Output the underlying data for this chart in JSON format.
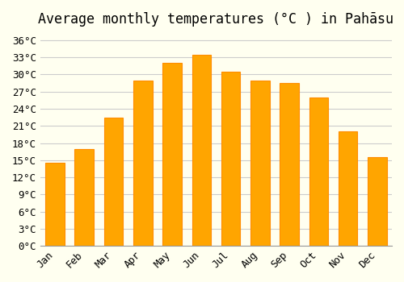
{
  "title": "Average monthly temperatures (°C ) in Pahāsu",
  "months": [
    "Jan",
    "Feb",
    "Mar",
    "Apr",
    "May",
    "Jun",
    "Jul",
    "Aug",
    "Sep",
    "Oct",
    "Nov",
    "Dec"
  ],
  "temperatures": [
    14.5,
    17.0,
    22.5,
    29.0,
    32.0,
    33.5,
    30.5,
    29.0,
    28.5,
    26.0,
    20.0,
    15.5
  ],
  "bar_color": "#FFA500",
  "bar_edge_color": "#FF8C00",
  "background_color": "#FFFFF0",
  "grid_color": "#CCCCCC",
  "ylim": [
    0,
    37
  ],
  "ytick_step": 3,
  "title_fontsize": 12,
  "tick_fontsize": 9,
  "font_family": "monospace"
}
